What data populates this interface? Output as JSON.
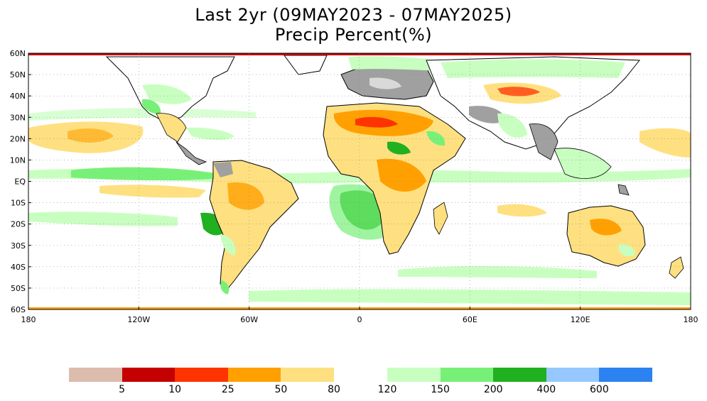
{
  "header": {
    "title": "Last 2yr (09MAY2023 - 07MAY2025)",
    "subtitle": "Precip Percent(%)"
  },
  "map": {
    "lat_labels": [
      "60N",
      "50N",
      "40N",
      "30N",
      "20N",
      "10N",
      "EQ",
      "10S",
      "20S",
      "30S",
      "40S",
      "50S",
      "60S"
    ],
    "lon_labels": [
      "180",
      "120W",
      "60W",
      "0",
      "60E",
      "120E",
      "180"
    ]
  },
  "legend": {
    "colors": [
      "#dcbcac",
      "#c40000",
      "#ff3300",
      "#ffa000",
      "#ffe080",
      "#c8ffc0",
      "#78f078",
      "#20b020",
      "#96c8ff",
      "#2c82f0"
    ],
    "labels": [
      "5",
      "10",
      "25",
      "50",
      "80",
      "120",
      "150",
      "200",
      "400",
      "600"
    ]
  }
}
